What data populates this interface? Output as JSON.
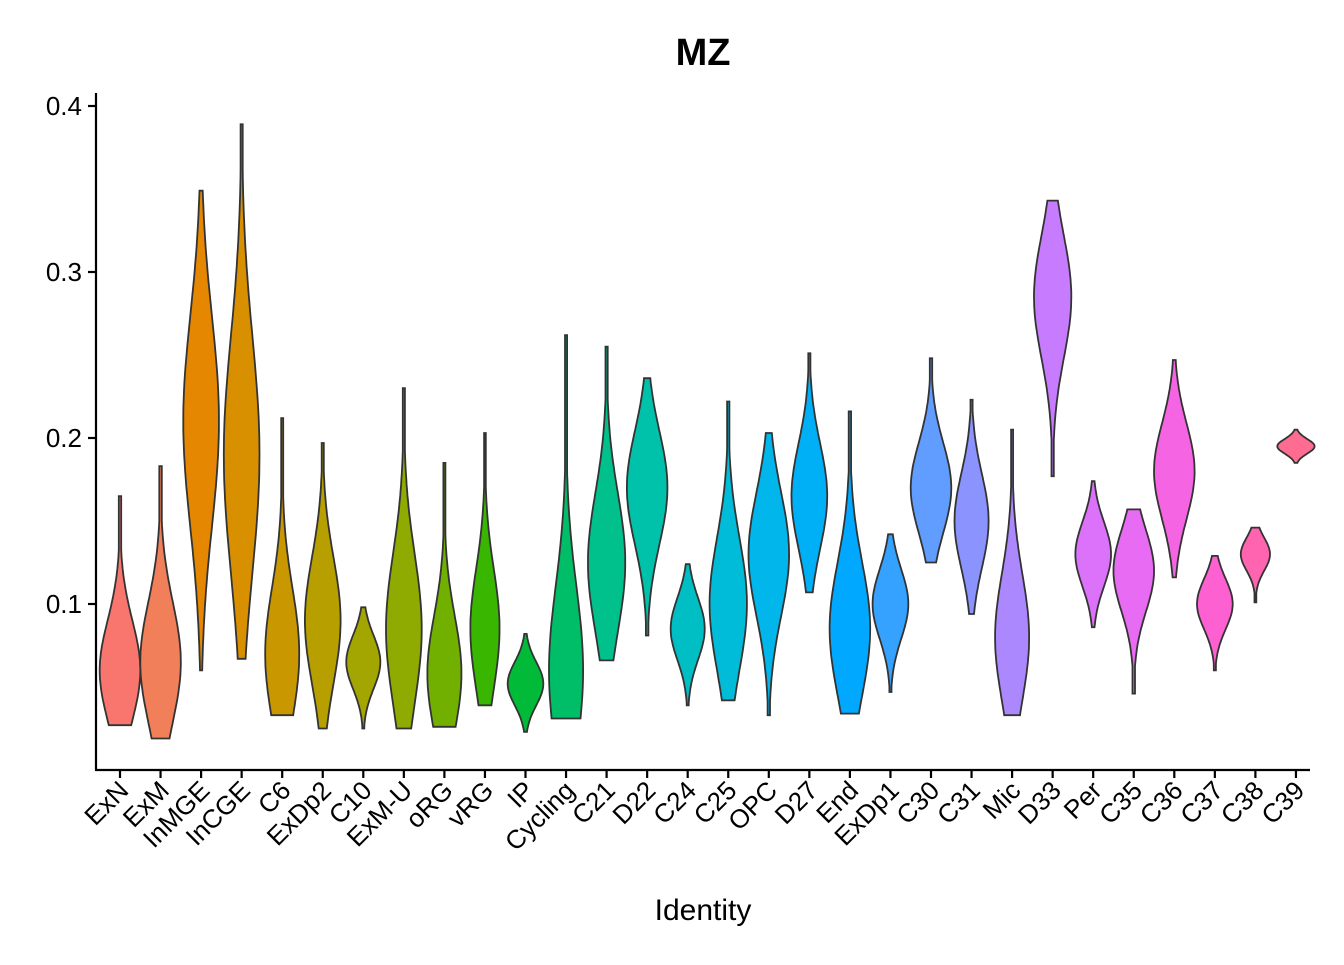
{
  "chart_data": {
    "type": "violin",
    "title": "MZ",
    "xlabel": "Identity",
    "ylabel": "",
    "ylim": [
      0.0,
      0.41
    ],
    "yticks": [
      0.1,
      0.2,
      0.3,
      0.4
    ],
    "ytick_labels": [
      "0.1",
      "0.2",
      "0.3",
      "0.4"
    ],
    "grid": false,
    "legend": "none",
    "categories": [
      {
        "name": "ExN",
        "color": "#F8766D",
        "min": 0.027,
        "max": 0.165,
        "mode": 0.06,
        "maxw": 0.5
      },
      {
        "name": "ExM",
        "color": "#F07F5A",
        "min": 0.019,
        "max": 0.183,
        "mode": 0.065,
        "maxw": 0.5
      },
      {
        "name": "InMGE",
        "color": "#E58700",
        "min": 0.06,
        "max": 0.349,
        "mode": 0.21,
        "maxw": 0.44
      },
      {
        "name": "InCGE",
        "color": "#D89000",
        "min": 0.067,
        "max": 0.389,
        "mode": 0.19,
        "maxw": 0.44
      },
      {
        "name": "C6",
        "color": "#C99800",
        "min": 0.033,
        "max": 0.212,
        "mode": 0.07,
        "maxw": 0.42
      },
      {
        "name": "ExDp2",
        "color": "#B79F00",
        "min": 0.025,
        "max": 0.197,
        "mode": 0.09,
        "maxw": 0.44
      },
      {
        "name": "C10",
        "color": "#A3A500",
        "min": 0.025,
        "max": 0.098,
        "mode": 0.065,
        "maxw": 0.42
      },
      {
        "name": "ExM-U",
        "color": "#8FAA00",
        "min": 0.025,
        "max": 0.23,
        "mode": 0.085,
        "maxw": 0.44
      },
      {
        "name": "oRG",
        "color": "#72B000",
        "min": 0.026,
        "max": 0.185,
        "mode": 0.058,
        "maxw": 0.42
      },
      {
        "name": "vRG",
        "color": "#39B600",
        "min": 0.039,
        "max": 0.203,
        "mode": 0.085,
        "maxw": 0.36
      },
      {
        "name": "IP",
        "color": "#00BA38",
        "min": 0.023,
        "max": 0.082,
        "mode": 0.052,
        "maxw": 0.44
      },
      {
        "name": "Cycling",
        "color": "#00BE67",
        "min": 0.031,
        "max": 0.262,
        "mode": 0.06,
        "maxw": 0.42
      },
      {
        "name": "C21",
        "color": "#00C08B",
        "min": 0.066,
        "max": 0.255,
        "mode": 0.125,
        "maxw": 0.46
      },
      {
        "name": "D22",
        "color": "#00C1A9",
        "min": 0.081,
        "max": 0.236,
        "mode": 0.17,
        "maxw": 0.5
      },
      {
        "name": "C24",
        "color": "#00BFC4",
        "min": 0.039,
        "max": 0.124,
        "mode": 0.085,
        "maxw": 0.42
      },
      {
        "name": "C25",
        "color": "#00BCD8",
        "min": 0.042,
        "max": 0.222,
        "mode": 0.1,
        "maxw": 0.46
      },
      {
        "name": "OPC",
        "color": "#00B6EB",
        "min": 0.033,
        "max": 0.203,
        "mode": 0.13,
        "maxw": 0.5
      },
      {
        "name": "D27",
        "color": "#00B0F6",
        "min": 0.107,
        "max": 0.251,
        "mode": 0.165,
        "maxw": 0.44
      },
      {
        "name": "End",
        "color": "#00A9FF",
        "min": 0.034,
        "max": 0.216,
        "mode": 0.085,
        "maxw": 0.5
      },
      {
        "name": "ExDp1",
        "color": "#35A2FF",
        "min": 0.047,
        "max": 0.142,
        "mode": 0.1,
        "maxw": 0.44
      },
      {
        "name": "C30",
        "color": "#619CFF",
        "min": 0.125,
        "max": 0.248,
        "mode": 0.17,
        "maxw": 0.5
      },
      {
        "name": "C31",
        "color": "#8B93FF",
        "min": 0.094,
        "max": 0.223,
        "mode": 0.15,
        "maxw": 0.42
      },
      {
        "name": "Mic",
        "color": "#AC88FF",
        "min": 0.033,
        "max": 0.205,
        "mode": 0.08,
        "maxw": 0.42
      },
      {
        "name": "D33",
        "color": "#C77CFF",
        "min": 0.177,
        "max": 0.343,
        "mode": 0.285,
        "maxw": 0.46
      },
      {
        "name": "Per",
        "color": "#DC71FA",
        "min": 0.086,
        "max": 0.174,
        "mode": 0.13,
        "maxw": 0.44
      },
      {
        "name": "C35",
        "color": "#E76BF3",
        "min": 0.046,
        "max": 0.157,
        "mode": 0.12,
        "maxw": 0.5
      },
      {
        "name": "C36",
        "color": "#F564E3",
        "min": 0.116,
        "max": 0.247,
        "mode": 0.18,
        "maxw": 0.5
      },
      {
        "name": "C37",
        "color": "#FD61D1",
        "min": 0.06,
        "max": 0.129,
        "mode": 0.1,
        "maxw": 0.44
      },
      {
        "name": "C38",
        "color": "#FF64B0",
        "min": 0.101,
        "max": 0.146,
        "mode": 0.13,
        "maxw": 0.36
      },
      {
        "name": "C39",
        "color": "#FF6C91",
        "min": 0.185,
        "max": 0.205,
        "mode": 0.195,
        "maxw": 0.46
      }
    ]
  }
}
